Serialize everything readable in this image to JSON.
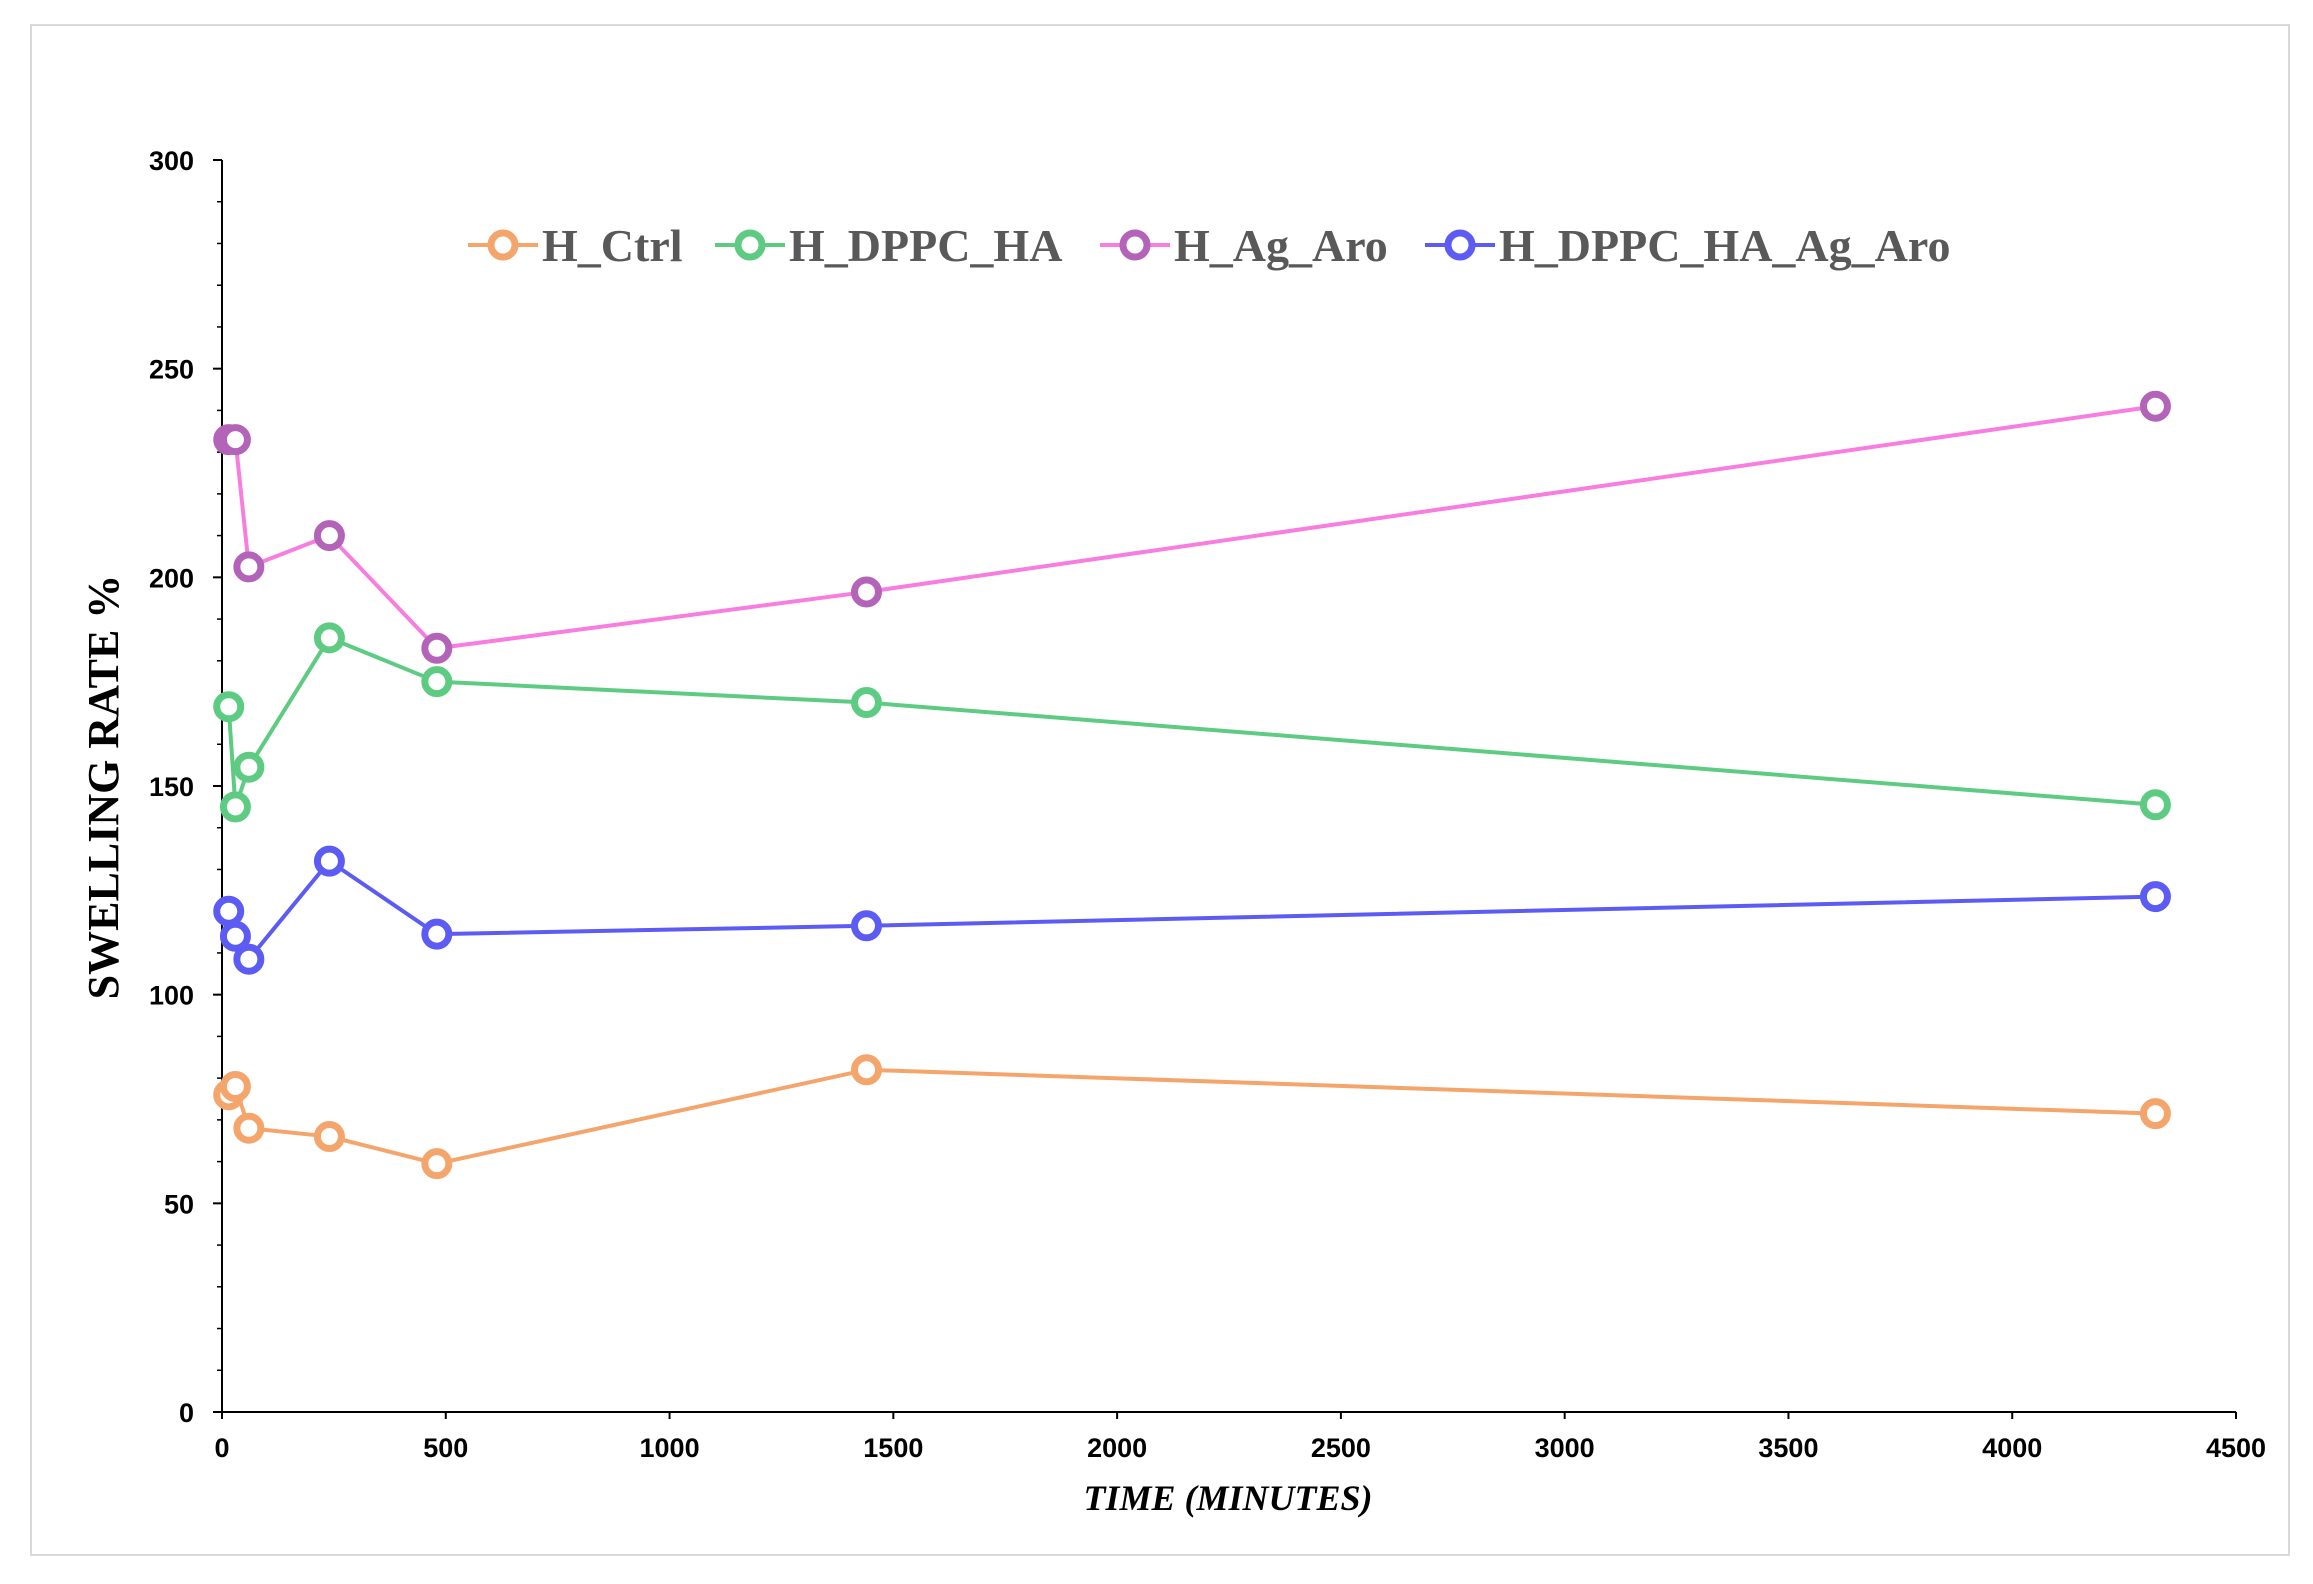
{
  "chart_data": {
    "type": "line",
    "title": "",
    "xlabel": "TIME (MINUTES)",
    "ylabel": "SWELLING RATE %",
    "xlim": [
      0,
      4500
    ],
    "ylim": [
      0,
      300
    ],
    "x_ticks": [
      "0",
      "500",
      "1000",
      "1500",
      "2000",
      "2500",
      "3000",
      "3500",
      "4000",
      "4500"
    ],
    "y_ticks": [
      "0",
      "50",
      "100",
      "150",
      "200",
      "250",
      "300"
    ],
    "grid": false,
    "legend_position": "top",
    "x": [
      15,
      30,
      60,
      240,
      480,
      1440,
      4320
    ],
    "series": [
      {
        "name": "H_Ctrl",
        "color": "#f4a56b",
        "values": [
          76,
          78,
          68,
          66,
          59.5,
          82,
          71.5
        ]
      },
      {
        "name": "H_DPPC_HA",
        "color": "#5dcc82",
        "values": [
          169,
          145,
          154.5,
          185.5,
          175,
          170,
          145.5
        ]
      },
      {
        "name": "H_Ag_Aro",
        "color": "#f77ddf",
        "marker_color": "#b364b8",
        "values": [
          233,
          233,
          202.5,
          210,
          183,
          196.5,
          241
        ]
      },
      {
        "name": "H_DPPC_HA_Ag_Aro",
        "color": "#5c5cf4",
        "values": [
          120,
          114,
          108.5,
          132,
          114.5,
          116.5,
          123.5
        ]
      }
    ]
  }
}
